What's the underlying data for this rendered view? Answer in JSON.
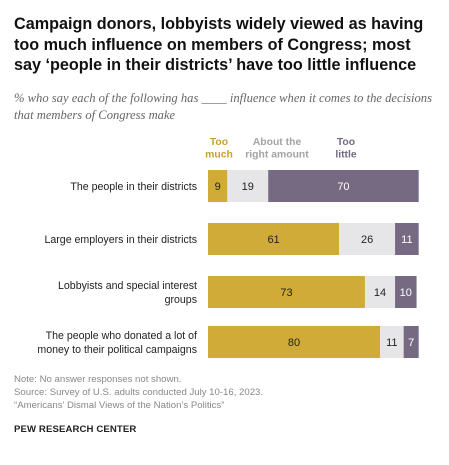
{
  "title": "Campaign donors, lobbyists widely viewed as having too much influence on members of Congress; most say ‘people in their districts’ have too little influence",
  "subtitle": "% who say each of the following has ____ influence when it comes to the decisions that members of Congress make",
  "colors": {
    "too_much": "#D1AB37",
    "right_amount": "#E6E6E8",
    "too_little": "#756A82",
    "label_too_much": "#C9A12A",
    "label_right": "#A3A3A3",
    "label_too_little": "#756A82"
  },
  "chart_data": {
    "type": "bar",
    "orientation": "horizontal",
    "stacked": true,
    "legend_placement": "top",
    "categories": [
      [
        "The people in their districts"
      ],
      [
        "Large employers in their districts"
      ],
      [
        "Lobbyists and special interest",
        "groups"
      ],
      [
        "The people who donated a lot of",
        "money to their political campaigns"
      ]
    ],
    "series": [
      {
        "name": "Too much",
        "legend_lines": [
          "Too",
          "much"
        ],
        "values": [
          9,
          61,
          73,
          80
        ]
      },
      {
        "name": "About the right amount",
        "legend_lines": [
          "About the",
          "right amount"
        ],
        "values": [
          19,
          26,
          14,
          11
        ]
      },
      {
        "name": "Too little",
        "legend_lines": [
          "Too",
          "little"
        ],
        "values": [
          70,
          11,
          10,
          7
        ]
      }
    ]
  },
  "notes": [
    "Note: No answer responses not shown.",
    "Source: Survey of U.S. adults conducted July 10-16, 2023.",
    "“Americans’ Dismal Views of the Nation’s Politics”"
  ],
  "source_org": "PEW RESEARCH CENTER"
}
